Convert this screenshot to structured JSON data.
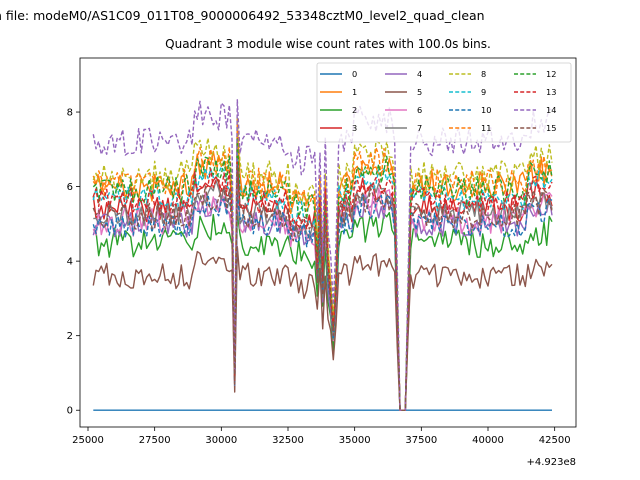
{
  "chart_data": {
    "type": "line",
    "suptitle": "n file: modeM0/AS1C09_011T08_9000006492_53348cztM0_level2_quad_clean",
    "title": "Quadrant 3 module wise count rates with 100.0s bins.",
    "xlabel": "",
    "ylabel": "",
    "x_offset_label": "+4.923e8",
    "xlim": [
      24700,
      43300
    ],
    "ylim": [
      -0.45,
      9.45
    ],
    "xticks": [
      25000,
      27500,
      30000,
      32500,
      35000,
      37500,
      40000,
      42500
    ],
    "xtick_labels": [
      "25000",
      "27500",
      "30000",
      "32500",
      "35000",
      "37500",
      "40000",
      "42500"
    ],
    "yticks": [
      0,
      2,
      4,
      6,
      8
    ],
    "ytick_labels": [
      "0",
      "2",
      "4",
      "6",
      "8"
    ],
    "x_range": [
      25200,
      42400
    ],
    "x_step": 100,
    "legend_position": "upper-right",
    "legend_columns": 4,
    "grid": false,
    "series": [
      {
        "name": "0",
        "color": "#1f77b4",
        "style": "solid",
        "base": 0.0,
        "noise": 0.0
      },
      {
        "name": "1",
        "color": "#ff7f0e",
        "style": "solid",
        "base": 6.0,
        "noise": 0.4
      },
      {
        "name": "2",
        "color": "#2ca02c",
        "style": "solid",
        "base": 4.5,
        "noise": 0.4
      },
      {
        "name": "3",
        "color": "#d62728",
        "style": "solid",
        "base": 5.4,
        "noise": 0.35
      },
      {
        "name": "4",
        "color": "#9467bd",
        "style": "solid",
        "base": 5.0,
        "noise": 0.35
      },
      {
        "name": "5",
        "color": "#8c564b",
        "style": "solid",
        "base": 3.6,
        "noise": 0.35
      },
      {
        "name": "6",
        "color": "#e377c2",
        "style": "solid",
        "base": 5.1,
        "noise": 0.4
      },
      {
        "name": "7",
        "color": "#7f7f7f",
        "style": "solid",
        "base": 5.3,
        "noise": 0.35
      },
      {
        "name": "8",
        "color": "#bcbd22",
        "style": "dashed",
        "base": 6.3,
        "noise": 0.4
      },
      {
        "name": "9",
        "color": "#17becf",
        "style": "dashed",
        "base": 5.7,
        "noise": 0.35
      },
      {
        "name": "10",
        "color": "#1f77b4",
        "style": "dashed",
        "base": 5.0,
        "noise": 0.35
      },
      {
        "name": "11",
        "color": "#ff7f0e",
        "style": "dashed",
        "base": 6.1,
        "noise": 0.4
      },
      {
        "name": "12",
        "color": "#2ca02c",
        "style": "dashed",
        "base": 5.9,
        "noise": 0.4
      },
      {
        "name": "13",
        "color": "#d62728",
        "style": "dashed",
        "base": 5.6,
        "noise": 0.35
      },
      {
        "name": "14",
        "color": "#9467bd",
        "style": "dashed",
        "base": 7.2,
        "noise": 0.4
      },
      {
        "name": "15",
        "color": "#8c564b",
        "style": "dashed",
        "base": 5.2,
        "noise": 0.35
      }
    ],
    "dips": [
      {
        "x": 30500,
        "factor": 0.14
      },
      {
        "x": 30600,
        "factor": 1.22
      },
      {
        "x": 33600,
        "factor": 0.7
      },
      {
        "x": 33800,
        "factor": 0.6
      },
      {
        "x": 34000,
        "factor": 0.68
      },
      {
        "x": 34100,
        "factor": 0.55
      },
      {
        "x": 34200,
        "factor": 0.38
      },
      {
        "x": 34300,
        "factor": 0.6
      },
      {
        "x": 36600,
        "factor": 0.5
      },
      {
        "x": 36700,
        "factor": 0.0
      },
      {
        "x": 36800,
        "factor": 0.0
      },
      {
        "x": 36900,
        "factor": 0.0
      },
      {
        "x": 37000,
        "factor": 0.5
      }
    ]
  }
}
